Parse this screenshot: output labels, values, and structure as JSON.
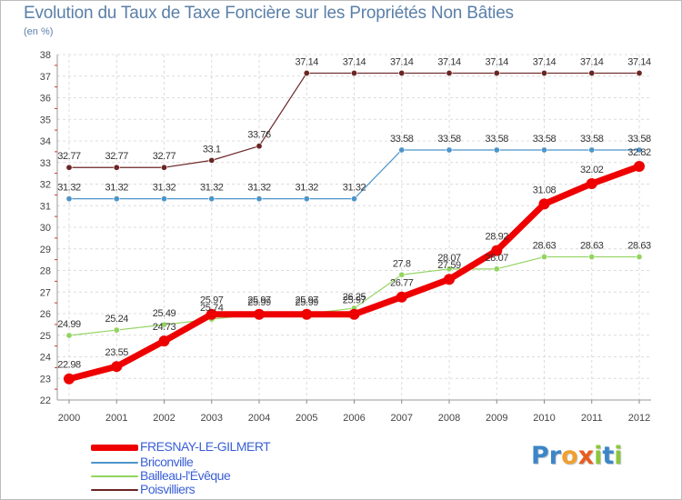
{
  "chart_data": {
    "type": "line",
    "title": "Evolution du Taux de Taxe Foncière sur les Propriétés Non Bâties",
    "subtitle": "(en %)",
    "xlabel": "",
    "ylabel": "(en %)",
    "ylim": [
      22,
      38
    ],
    "yticks": [
      "22",
      "23",
      "24",
      "25",
      "26",
      "27",
      "28",
      "29",
      "30",
      "31",
      "32",
      "33",
      "34",
      "35",
      "36",
      "37",
      "38"
    ],
    "categories": [
      "2000",
      "2001",
      "2002",
      "2003",
      "2004",
      "2005",
      "2006",
      "2007",
      "2008",
      "2009",
      "2010",
      "2011",
      "2012"
    ],
    "grid": true,
    "legend_position": "bottom-left",
    "series": [
      {
        "name": "Poisvilliers",
        "color": "#6b2525",
        "values": [
          32.77,
          32.77,
          32.77,
          33.1,
          33.76,
          37.14,
          37.14,
          37.14,
          37.14,
          37.14,
          37.14,
          37.14,
          37.14
        ],
        "labels": [
          "32.77",
          "32.77",
          "32.77",
          "33.1",
          "33.76",
          "37.14",
          "37.14",
          "37.14",
          "37.14",
          "37.14",
          "37.14",
          "37.14",
          "37.14"
        ]
      },
      {
        "name": "Briconville",
        "color": "#4d95c9",
        "values": [
          31.32,
          31.32,
          31.32,
          31.32,
          31.32,
          31.32,
          31.32,
          33.58,
          33.58,
          33.58,
          33.58,
          33.58,
          33.58
        ],
        "labels": [
          "31.32",
          "31.32",
          "31.32",
          "31.32",
          "31.32",
          "31.32",
          "31.32",
          "33.58",
          "33.58",
          "33.58",
          "33.58",
          "33.58",
          "33.58"
        ]
      },
      {
        "name": "Bailleau-l'Évêque",
        "color": "#93d461",
        "values": [
          24.99,
          25.24,
          25.49,
          25.74,
          25.99,
          25.99,
          26.25,
          27.8,
          28.07,
          28.07,
          28.63,
          28.63,
          28.63
        ],
        "labels": [
          "24.99",
          "25.24",
          "25.49",
          "25.74",
          "25.99",
          "25.99",
          "26.25",
          "27.8",
          "28.07",
          "28.07",
          "28.63",
          "28.63",
          "28.63"
        ]
      },
      {
        "name": "FRESNAY-LE-GILMERT",
        "color": "#ee0000",
        "values": [
          22.98,
          23.55,
          24.73,
          25.97,
          25.97,
          25.97,
          25.97,
          26.77,
          27.59,
          28.92,
          31.08,
          32.02,
          32.82
        ],
        "labels": [
          "22.98",
          "23.55",
          "24.73",
          "25.97",
          "25.97",
          "25.97",
          "25.97",
          "26.77",
          "27.59",
          "28.92",
          "31.08",
          "32.02",
          "32.82"
        ]
      }
    ],
    "legend": [
      "FRESNAY-LE-GILMERT",
      "Briconville",
      "Bailleau-l'Évêque",
      "Poisvilliers"
    ]
  },
  "logo": {
    "letters": [
      "P",
      "r",
      "o",
      "x",
      "i",
      "t",
      "i"
    ],
    "colors": [
      "#3b86c8",
      "#3b86c8",
      "#f0a030",
      "#e85c20",
      "#8cc63f",
      "#3b86c8",
      "#8cc63f"
    ]
  }
}
